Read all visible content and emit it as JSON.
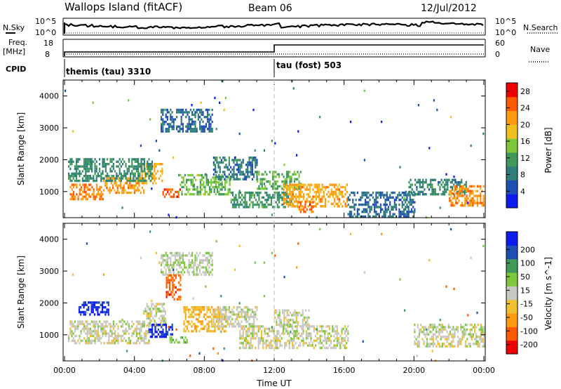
{
  "header": {
    "station": "Wallops Island (fitACF)",
    "beam": "Beam 06",
    "date": "12/Jul/2012"
  },
  "status_panels": {
    "nsky_label": "N.Sky",
    "nsearch_label": "N.Search",
    "noise_ticks": [
      "10^5",
      "10^0"
    ],
    "freq_label_top": "Freq.",
    "freq_label_bottom": "[MHz]",
    "freq_ticks": [
      "18",
      "8"
    ],
    "nave_label": "Nave",
    "nave_ticks": [
      "60",
      "0"
    ],
    "cpid_label": "CPID",
    "cpid_segments": [
      {
        "label": "themis (tau) 3310",
        "start_hour": 0
      },
      {
        "label": "tau (fost) 503",
        "start_hour": 12
      }
    ]
  },
  "chart_data": [
    {
      "type": "heatmap",
      "name": "power",
      "ylabel": "Slant Range [km]",
      "xlabel": "",
      "xlim_hours": [
        0,
        24
      ],
      "ylim_km": [
        180,
        4500
      ],
      "yticks": [
        "1000",
        "2000",
        "3000",
        "4000"
      ],
      "colorbar_label": "Power [dB]",
      "colorbar_ticks": [
        "4",
        "8",
        "12",
        "16",
        "20",
        "24",
        "28"
      ],
      "colorbar_range": [
        0,
        30
      ],
      "colors": [
        "#0a1cf0",
        "#1e4fb4",
        "#2e7d78",
        "#3f9a5a",
        "#7ec83c",
        "#f0c020",
        "#ff9a10",
        "#ff5a00",
        "#f00000"
      ],
      "regions": [
        {
          "start": 0.3,
          "end": 2.2,
          "rmin": 800,
          "rmax": 1250,
          "v": 23
        },
        {
          "start": 2.2,
          "end": 4.5,
          "rmin": 1000,
          "rmax": 1450,
          "v": 22
        },
        {
          "start": 4.4,
          "end": 5.6,
          "rmin": 1300,
          "rmax": 1900,
          "v": 20
        },
        {
          "start": 0.2,
          "end": 5.0,
          "rmin": 1350,
          "rmax": 2050,
          "v": 10
        },
        {
          "start": 5.6,
          "end": 6.6,
          "rmin": 850,
          "rmax": 1100,
          "v": 25
        },
        {
          "start": 6.5,
          "end": 9.5,
          "rmin": 950,
          "rmax": 1550,
          "v": 14
        },
        {
          "start": 8.5,
          "end": 11.0,
          "rmin": 1400,
          "rmax": 2100,
          "v": 8
        },
        {
          "start": 9.5,
          "end": 13.0,
          "rmin": 500,
          "rmax": 1000,
          "v": 11
        },
        {
          "start": 11.0,
          "end": 13.5,
          "rmin": 1100,
          "rmax": 1650,
          "v": 13
        },
        {
          "start": 12.5,
          "end": 16.2,
          "rmin": 550,
          "rmax": 1250,
          "v": 21
        },
        {
          "start": 13.3,
          "end": 14.2,
          "rmin": 350,
          "rmax": 700,
          "v": 24
        },
        {
          "start": 16.2,
          "end": 20.0,
          "rmin": 200,
          "rmax": 1000,
          "v": 7
        },
        {
          "start": 19.5,
          "end": 23.0,
          "rmin": 900,
          "rmax": 1400,
          "v": 9
        },
        {
          "start": 22.0,
          "end": 24.0,
          "rmin": 550,
          "rmax": 1200,
          "v": 22
        },
        {
          "start": 5.5,
          "end": 8.5,
          "rmin": 2900,
          "rmax": 3600,
          "v": 7
        },
        {
          "start": 0.0,
          "end": 24.0,
          "rmin": 200,
          "rmax": 4500,
          "v": 6
        }
      ]
    },
    {
      "type": "heatmap",
      "name": "velocity",
      "ylabel": "Slant Range [km]",
      "xlabel": "Time UT",
      "xlim_hours": [
        0,
        24
      ],
      "ylim_km": [
        180,
        4500
      ],
      "xticks": [
        "00:00",
        "04:00",
        "08:00",
        "12:00",
        "16:00",
        "20:00",
        "00:00"
      ],
      "yticks": [
        "1000",
        "2000",
        "3000",
        "4000"
      ],
      "colorbar_label": "Velocity [m s^-1]",
      "colorbar_ticks": [
        "200",
        "100",
        "50",
        "15",
        "-15",
        "-50",
        "-100",
        "-200"
      ],
      "colorbar_range": [
        -250,
        250
      ],
      "colors": [
        "#f00000",
        "#ff5a00",
        "#ff9a10",
        "#f0c030",
        "#c8c8c0",
        "#7ec83c",
        "#3f9a5a",
        "#1e4fb4",
        "#0a1cf0"
      ],
      "regions": [
        {
          "start": 0.2,
          "end": 4.8,
          "rmin": 750,
          "rmax": 1450,
          "v": 0
        },
        {
          "start": 4.5,
          "end": 5.8,
          "rmin": 1300,
          "rmax": 2000,
          "v": 0
        },
        {
          "start": 0.8,
          "end": 2.5,
          "rmin": 1650,
          "rmax": 2050,
          "v": 210
        },
        {
          "start": 4.8,
          "end": 6.2,
          "rmin": 950,
          "rmax": 1350,
          "v": 200
        },
        {
          "start": 6.0,
          "end": 7.0,
          "rmin": 750,
          "rmax": 950,
          "v": 70
        },
        {
          "start": 6.8,
          "end": 9.2,
          "rmin": 1100,
          "rmax": 1900,
          "v": -70
        },
        {
          "start": 8.5,
          "end": 11.0,
          "rmin": 1250,
          "rmax": 1900,
          "v": 0
        },
        {
          "start": 10.0,
          "end": 16.2,
          "rmin": 600,
          "rmax": 1300,
          "v": 0
        },
        {
          "start": 12.0,
          "end": 14.0,
          "rmin": 1300,
          "rmax": 1800,
          "v": 0
        },
        {
          "start": 20.0,
          "end": 24.0,
          "rmin": 650,
          "rmax": 1350,
          "v": 0
        },
        {
          "start": 5.5,
          "end": 8.5,
          "rmin": 2900,
          "rmax": 3600,
          "v": 20
        },
        {
          "start": 5.8,
          "end": 6.6,
          "rmin": 2100,
          "rmax": 2900,
          "v": -160
        },
        {
          "start": 0.0,
          "end": 24.0,
          "rmin": 200,
          "rmax": 4500,
          "v": 0
        }
      ]
    }
  ]
}
